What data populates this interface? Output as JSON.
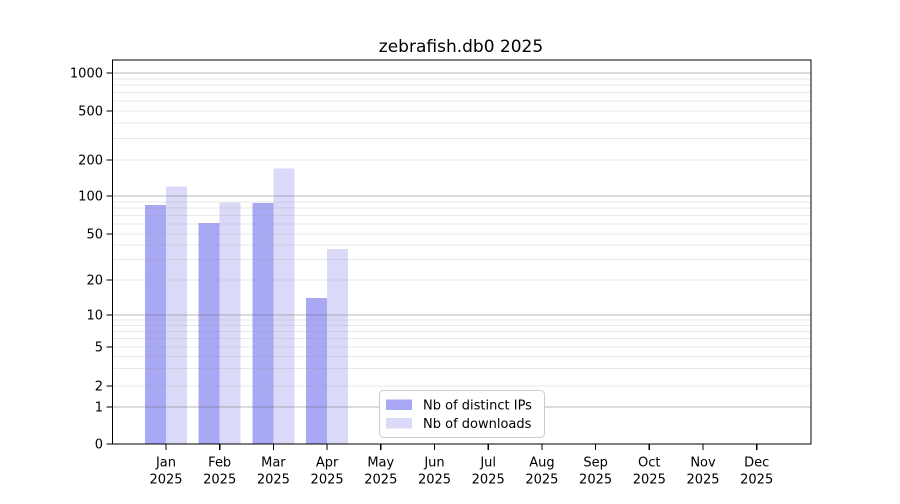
{
  "chart_data": {
    "type": "bar",
    "title": "zebrafish.db0 2025",
    "categories": [
      "Jan",
      "Feb",
      "Mar",
      "Apr",
      "May",
      "Jun",
      "Jul",
      "Aug",
      "Sep",
      "Oct",
      "Nov",
      "Dec"
    ],
    "x_tick_year": "2025",
    "series": [
      {
        "name": "Nb of distinct IPs",
        "slug": "distinct-ips",
        "color": "#a8a8f5",
        "values": [
          85,
          61,
          88,
          14,
          0,
          0,
          0,
          0,
          0,
          0,
          0,
          0
        ]
      },
      {
        "name": "Nb of downloads",
        "slug": "downloads",
        "color": "#dadaf8",
        "values": [
          120,
          89,
          170,
          37,
          0,
          0,
          0,
          0,
          0,
          0,
          0,
          0
        ]
      }
    ],
    "y_ticks": [
      0,
      1,
      2,
      5,
      10,
      20,
      50,
      100,
      200,
      500,
      1000
    ],
    "y_scale": "log (symlog: linear segment 0-1, log above)",
    "ylim": [
      0,
      1300
    ],
    "grid": true,
    "legend": {
      "position": "bottom-center",
      "entries": [
        "Nb of distinct IPs",
        "Nb of downloads"
      ]
    },
    "colors": {
      "major_gridline": "#b4b4b4",
      "minor_gridline": "#e6e6e6",
      "spine": "#000000"
    }
  }
}
